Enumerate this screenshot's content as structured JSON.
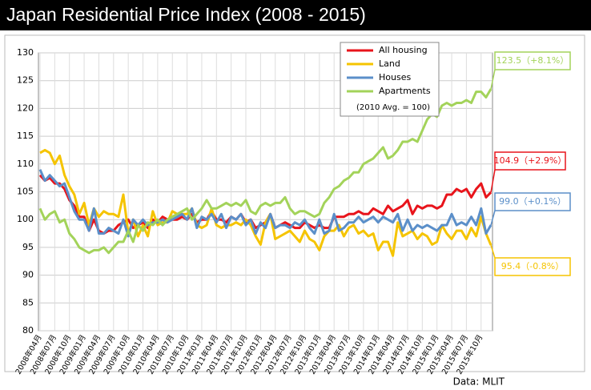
{
  "chart_data": {
    "type": "line",
    "title": "Japan Residential Price Index (2008 - 2015)",
    "note": "(2010 Avg. = 100)",
    "source": "Data: MLIT",
    "categories": [
      "2008年04月",
      null,
      null,
      "2008年07月",
      null,
      null,
      "2008年10月",
      null,
      null,
      "2009年01月",
      null,
      null,
      "2009年04月",
      null,
      null,
      "2009年07月",
      null,
      null,
      "2009年10月",
      null,
      null,
      "2010年01月",
      null,
      null,
      "2010年04月",
      null,
      null,
      "2010年07月",
      null,
      null,
      "2010年10月",
      null,
      null,
      "2011年01月",
      null,
      null,
      "2011年04月",
      null,
      null,
      "2011年07月",
      null,
      null,
      "2011年10月",
      null,
      null,
      "2012年01月",
      null,
      null,
      "2012年04月",
      null,
      null,
      "2012年07月",
      null,
      null,
      "2012年10月",
      null,
      null,
      "2013年01月",
      null,
      null,
      "2013年04月",
      null,
      null,
      "2013年07月",
      null,
      null,
      "2013年10月",
      null,
      null,
      "2014年01月",
      null,
      null,
      "2014年04月",
      null,
      null,
      "2014年07月",
      null,
      null,
      "2014年10月",
      null,
      null,
      "2015年01月",
      null,
      null,
      "2015年04月",
      null,
      null,
      "2015年07月",
      null,
      null,
      "2015年10月",
      null,
      null
    ],
    "series": [
      {
        "name": "All housing",
        "color": "#e8141b",
        "end_label": "104.9（+2.9%）",
        "values": [
          108,
          107,
          107.5,
          106.5,
          106.5,
          105.5,
          103.5,
          102.5,
          100.5,
          100.5,
          98,
          100,
          98,
          97.5,
          98,
          98,
          99,
          99.5,
          100,
          98.5,
          99,
          99.5,
          98.5,
          100,
          99.5,
          100.5,
          100,
          100,
          100,
          100.5,
          100,
          101,
          99.5,
          100,
          100,
          101.5,
          100,
          100,
          99.5,
          100.5,
          100,
          101,
          99.5,
          100,
          98.5,
          99,
          99.5,
          101,
          98.5,
          99,
          99.5,
          99,
          98.5,
          98.5,
          99.5,
          99,
          98.5,
          99,
          98.5,
          98.5,
          100.5,
          100.5,
          100.5,
          101,
          101,
          101.5,
          101,
          101,
          102,
          101.5,
          101,
          102.5,
          101.5,
          102,
          102.5,
          103.5,
          101,
          102.5,
          102,
          102.5,
          102.5,
          102,
          102.5,
          104.5,
          104.5,
          105.5,
          105,
          105.5,
          104,
          105.5,
          106.5,
          104,
          104.9
        ]
      },
      {
        "name": "Land",
        "color": "#f5c400",
        "end_label": "95.4（-0.8%）",
        "values": [
          112,
          112.5,
          112,
          110,
          111.5,
          108,
          106,
          104.5,
          101,
          103,
          99,
          102,
          100.5,
          101.5,
          101,
          101,
          100.5,
          104.5,
          97.5,
          100,
          97,
          99,
          97,
          101.5,
          99,
          99.5,
          99.5,
          101.5,
          101,
          101,
          101,
          102,
          99,
          98.5,
          99,
          102,
          99,
          98.5,
          99,
          99,
          99.5,
          99,
          100,
          99,
          97,
          95.5,
          99.5,
          101,
          96.5,
          97,
          97.5,
          98,
          97,
          96,
          98,
          96.5,
          96,
          94.5,
          97,
          98,
          98,
          99,
          97,
          98.5,
          99,
          97.5,
          98,
          97,
          97.5,
          94.5,
          96,
          96,
          93.5,
          99.5,
          97,
          97.5,
          98,
          96.5,
          97.5,
          97,
          95.5,
          96,
          99,
          97.5,
          96.5,
          98,
          98,
          96.5,
          98.5,
          97,
          100.5,
          97.5,
          95.4
        ]
      },
      {
        "name": "Houses",
        "color": "#5b8fc9",
        "end_label": "99.0（+0.1%）",
        "values": [
          109,
          107,
          108,
          107,
          106,
          106.5,
          104,
          101.5,
          100,
          100,
          98,
          102,
          97.5,
          97.5,
          98.5,
          98,
          97.5,
          100,
          97,
          100,
          99,
          100,
          99,
          99.5,
          99.5,
          100,
          99.5,
          100,
          100.5,
          101,
          100,
          102,
          98.5,
          100.5,
          100,
          101,
          99.5,
          101,
          98.5,
          100.5,
          100,
          101,
          99,
          100,
          97.5,
          99.5,
          98.5,
          101,
          98.5,
          99,
          99,
          98.5,
          99.5,
          99,
          100,
          98.5,
          97.5,
          100,
          97.5,
          98,
          101,
          98,
          98.5,
          99.5,
          99.5,
          100.5,
          99.5,
          100,
          100.5,
          99.5,
          100.5,
          100,
          99.5,
          101,
          98,
          100,
          98,
          99,
          98.5,
          99,
          98.5,
          98,
          99,
          99,
          101,
          99,
          99.5,
          99,
          100.5,
          99,
          102,
          97.5,
          99
        ]
      },
      {
        "name": "Apartments",
        "color": "#a3d35a",
        "end_label": "123.5（+8.1%）",
        "values": [
          102,
          100,
          101,
          101.5,
          99.5,
          100,
          97.5,
          96.5,
          95,
          94.5,
          94,
          94.5,
          94.5,
          95,
          94,
          95,
          96,
          96,
          98,
          96,
          99,
          98,
          99.5,
          99,
          100,
          99,
          100,
          100.5,
          101,
          101.5,
          102,
          100,
          101,
          102,
          103.5,
          102,
          102,
          102.5,
          103,
          102.5,
          103,
          102.5,
          103.5,
          101.5,
          101,
          102.5,
          103,
          102.5,
          103,
          103,
          104,
          102,
          101,
          101.5,
          101.5,
          101,
          100.5,
          101,
          103,
          104,
          105.5,
          106,
          107,
          107.5,
          108.5,
          108.5,
          110,
          110.5,
          111,
          112,
          113,
          111,
          111.5,
          112.5,
          114,
          114,
          114.5,
          114,
          116,
          118,
          119,
          118.5,
          120.5,
          121,
          120.5,
          121,
          121,
          121.5,
          121,
          123,
          123,
          122,
          123.5
        ]
      }
    ],
    "ylim": [
      80,
      130
    ],
    "yticks": [
      80,
      85,
      90,
      95,
      100,
      105,
      110,
      115,
      120,
      125,
      130
    ],
    "grid": true
  }
}
